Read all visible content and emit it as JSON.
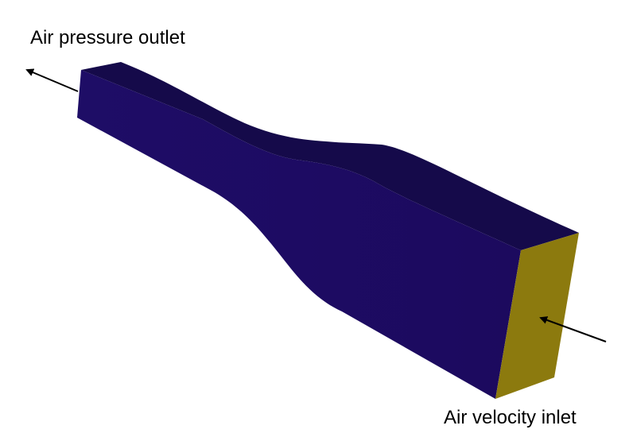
{
  "labels": {
    "outlet": "Air pressure outlet",
    "inlet": "Air velocity inlet"
  },
  "colors": {
    "side_face": "#1c0b62",
    "top_face": "#150a4a",
    "inlet_face": "#8c7a0e",
    "arrow": "#000000",
    "background": "#ffffff"
  }
}
